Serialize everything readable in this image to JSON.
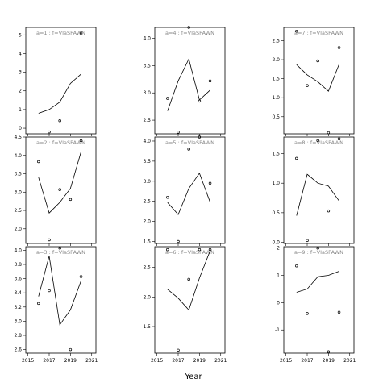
{
  "chart_data": {
    "type": "line",
    "xlabel": "Year",
    "x_ticks": [
      2015,
      2017,
      2019,
      2021
    ],
    "panels": [
      {
        "label": "a=1 : f=VIaSPAWN",
        "line": {
          "x": [
            2016,
            2017,
            2018,
            2019,
            2020
          ],
          "y": [
            0.8,
            1.0,
            1.4,
            2.4,
            2.9
          ]
        },
        "points": {
          "x": [
            2017,
            2018,
            2020
          ],
          "y": [
            -0.2,
            0.4,
            5.1
          ]
        },
        "ylim": [
          -0.3,
          5.4
        ],
        "yticks": [
          0,
          1,
          2,
          3,
          4,
          5
        ]
      },
      {
        "label": "a=2 : f=VIaSPAWN",
        "line": {
          "x": [
            2016,
            2017,
            2018,
            2019,
            2020
          ],
          "y": [
            3.4,
            2.43,
            2.72,
            3.1,
            4.1
          ]
        },
        "points": {
          "x": [
            2016,
            2017,
            2018,
            2019,
            2020
          ],
          "y": [
            3.83,
            1.7,
            3.07,
            2.8,
            4.4
          ]
        },
        "ylim": [
          1.6,
          4.5
        ],
        "yticks": [
          2.0,
          2.5,
          3.0,
          3.5,
          4.0,
          4.5
        ]
      },
      {
        "label": "a=3 : f=VIaSPAWN",
        "line": {
          "x": [
            2016,
            2017,
            2018,
            2019,
            2020
          ],
          "y": [
            3.35,
            3.92,
            2.95,
            3.16,
            3.57
          ]
        },
        "points": {
          "x": [
            2016,
            2017,
            2018,
            2019,
            2020
          ],
          "y": [
            3.25,
            3.43,
            4.03,
            2.6,
            3.63
          ]
        },
        "ylim": [
          2.55,
          4.05
        ],
        "yticks": [
          2.6,
          2.8,
          3.0,
          3.2,
          3.4,
          3.6,
          3.8,
          4.0
        ]
      },
      {
        "label": "a=4 : f=VIaSPAWN",
        "line": {
          "x": [
            2016,
            2017,
            2018,
            2019,
            2020
          ],
          "y": [
            2.67,
            3.22,
            3.62,
            2.87,
            3.05
          ]
        },
        "points": {
          "x": [
            2016,
            2017,
            2018,
            2019,
            2020
          ],
          "y": [
            2.9,
            2.28,
            4.2,
            2.85,
            3.22
          ]
        },
        "ylim": [
          2.25,
          4.2
        ],
        "yticks": [
          2.5,
          3.0,
          3.5,
          4.0
        ]
      },
      {
        "label": "a=5 : f=VIaSPAWN",
        "line": {
          "x": [
            2016,
            2017,
            2018,
            2019,
            2020
          ],
          "y": [
            2.47,
            2.17,
            2.82,
            3.2,
            2.48
          ]
        },
        "points": {
          "x": [
            2016,
            2017,
            2018,
            2019,
            2020
          ],
          "y": [
            2.6,
            1.5,
            3.8,
            4.1,
            2.95
          ]
        },
        "ylim": [
          1.45,
          4.1
        ],
        "yticks": [
          1.5,
          2.0,
          2.5,
          3.0,
          3.5,
          4.0
        ]
      },
      {
        "label": "a=6 : f=VIaSPAWN",
        "line": {
          "x": [
            2016,
            2017,
            2018,
            2019,
            2020
          ],
          "y": [
            2.13,
            1.98,
            1.78,
            2.32,
            2.78
          ]
        },
        "points": {
          "x": [
            2016,
            2017,
            2018,
            2019,
            2020
          ],
          "y": [
            2.8,
            1.1,
            2.3,
            2.8,
            2.8
          ]
        },
        "ylim": [
          1.05,
          2.85
        ],
        "yticks": [
          1.5,
          2.0,
          2.5
        ]
      },
      {
        "label": "a=7 : f=VIaSPAWN",
        "line": {
          "x": [
            2016,
            2017,
            2018,
            2019,
            2020
          ],
          "y": [
            1.87,
            1.6,
            1.42,
            1.17,
            1.88
          ]
        },
        "points": {
          "x": [
            2016,
            2017,
            2018,
            2019,
            2020
          ],
          "y": [
            2.75,
            1.32,
            1.97,
            0.08,
            2.32
          ]
        },
        "ylim": [
          0.05,
          2.85
        ],
        "yticks": [
          0.5,
          1.0,
          1.5,
          2.0,
          2.5
        ]
      },
      {
        "label": "a=8 : f=VIaSPAWN",
        "line": {
          "x": [
            2016,
            2017,
            2018,
            2019,
            2020
          ],
          "y": [
            0.45,
            1.15,
            1.0,
            0.95,
            0.7
          ]
        },
        "points": {
          "x": [
            2016,
            2017,
            2018,
            2019,
            2020
          ],
          "y": [
            1.42,
            0.03,
            1.72,
            0.53,
            1.75
          ]
        },
        "ylim": [
          -0.02,
          1.78
        ],
        "yticks": [
          0.0,
          0.5,
          1.0,
          1.5
        ]
      },
      {
        "label": "a=9 : f=VIaSPAWN",
        "line": {
          "x": [
            2016,
            2017,
            2018,
            2019,
            2020
          ],
          "y": [
            0.38,
            0.5,
            0.95,
            1.0,
            1.15
          ]
        },
        "points": {
          "x": [
            2016,
            2017,
            2018,
            2019,
            2020
          ],
          "y": [
            1.35,
            -0.4,
            2.0,
            -1.8,
            -0.35
          ]
        },
        "ylim": [
          -1.85,
          2.05
        ],
        "yticks": [
          -1,
          0,
          1,
          2
        ]
      }
    ]
  }
}
